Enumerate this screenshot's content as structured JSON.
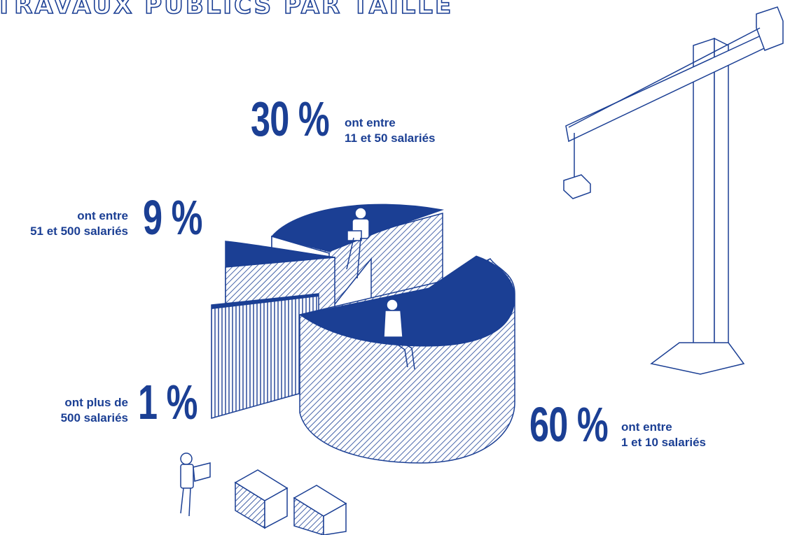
{
  "title": "TRAVAUX PUBLICS PAR TAILLE",
  "colors": {
    "primary": "#1b3f94",
    "background": "#ffffff"
  },
  "chart_data": {
    "type": "pie",
    "title": "TRAVAUX PUBLICS PAR TAILLE",
    "categories": [
      "1 et 10 salariés",
      "11 et 50 salariés",
      "51 et 500 salariés",
      "plus de 500 salariés"
    ],
    "values": [
      60,
      30,
      9,
      1
    ],
    "slices": [
      {
        "value": 60,
        "pct_label": "60 %",
        "label_line1": "ont entre",
        "label_line2": "1 et 10 salariés"
      },
      {
        "value": 30,
        "pct_label": "30 %",
        "label_line1": "ont entre",
        "label_line2": "11 et 50 salariés"
      },
      {
        "value": 9,
        "pct_label": "9 %",
        "label_line1": "ont entre",
        "label_line2": "51 et 500 salariés"
      },
      {
        "value": 1,
        "pct_label": "1 %",
        "label_line1": "ont plus de",
        "label_line2": "500 salariés"
      }
    ]
  },
  "illustrations": [
    "tower-crane",
    "worker-with-plans",
    "brick-stacks",
    "seated-man-with-laptop",
    "seated-woman-on-phone"
  ]
}
